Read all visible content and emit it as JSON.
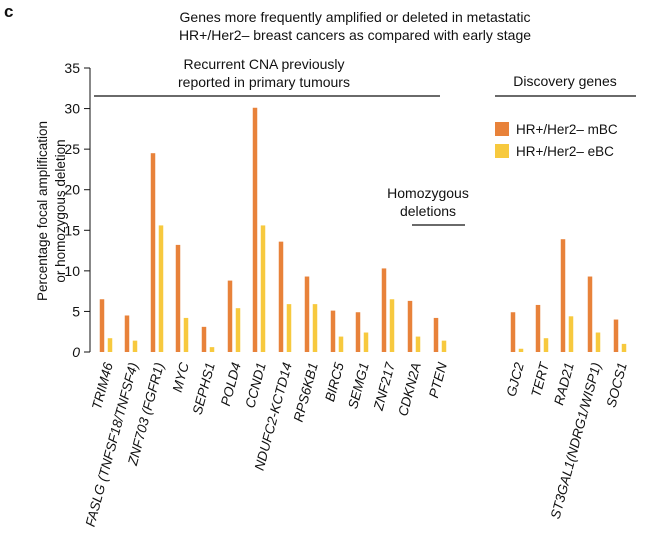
{
  "panel_letter": "c",
  "title_line1": "Genes more frequently amplified or deleted in metastatic",
  "title_line2": "HR+/Her2– breast cancers as compared with early stage",
  "colors": {
    "mBC": "#E8823A",
    "eBC": "#F7C93E"
  },
  "chart_data": {
    "type": "bar",
    "title": "Genes more frequently amplified or deleted in metastatic HR+/Her2– breast cancers as compared with early stage",
    "ylabel_line1": "Percentage focal amplification",
    "ylabel_line2": "or homozygous deletion",
    "ylim": [
      0,
      35
    ],
    "yticks": [
      "0",
      "5",
      "10",
      "15",
      "20",
      "25",
      "30",
      "35"
    ],
    "grid": false,
    "legend_position": "top-right",
    "categories": [
      "TRIM46",
      "FASLG (TNFSF18/TNFSF4)",
      "ZNF703 (FGFR1)",
      "MYC",
      "SEPHS1",
      "POLD4",
      "CCND1",
      "NDUFC2-KCTD14",
      "RPS6KB1",
      "BIRC5",
      "SEMG1",
      "ZNF217",
      "CDKN2A",
      "PTEN",
      "GJC2",
      "TERT",
      "RAD21",
      "ST3GAL1(NDRG1/WISP1)",
      "SOCS1"
    ],
    "series": [
      {
        "name": "HR+/Her2– mBC",
        "values": [
          6.5,
          4.5,
          24.5,
          13.2,
          3.1,
          8.8,
          30.1,
          13.6,
          9.3,
          5.1,
          4.9,
          10.3,
          6.3,
          4.2,
          4.9,
          5.8,
          13.9,
          9.3,
          4.0
        ]
      },
      {
        "name": "HR+/Her2– eBC",
        "values": [
          1.7,
          1.4,
          15.6,
          4.2,
          0.6,
          5.4,
          15.6,
          5.9,
          5.9,
          1.9,
          2.4,
          6.5,
          1.9,
          1.4,
          0.4,
          1.7,
          4.4,
          2.4,
          1.0
        ]
      }
    ],
    "annotations": {
      "recurrent_line1": "Recurrent CNA previously",
      "recurrent_line2": "reported in primary tumours",
      "homozygous_line1": "Homozygous",
      "homozygous_line2": "deletions",
      "discovery": "Discovery genes"
    }
  }
}
